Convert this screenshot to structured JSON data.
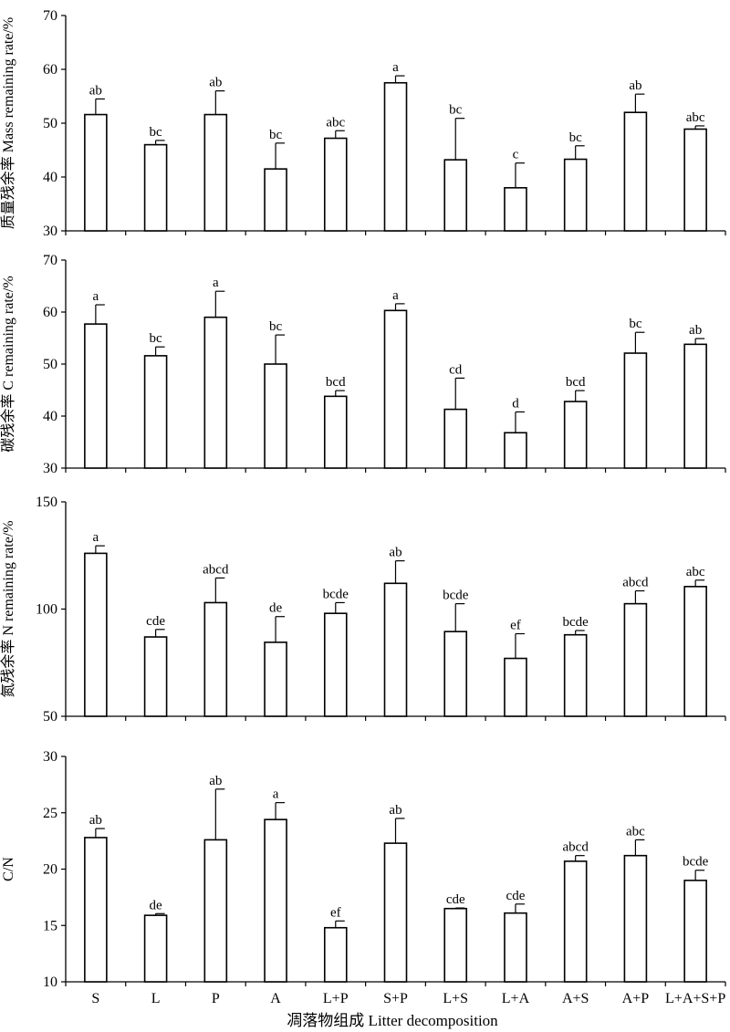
{
  "categories": [
    "S",
    "L",
    "P",
    "A",
    "L+P",
    "S+P",
    "L+S",
    "L+A",
    "A+S",
    "A+P",
    "L+A+S+P"
  ],
  "xlabel": "凋落物组成 Litter decomposition",
  "chart_data": [
    {
      "type": "bar",
      "ylabel": "质量残余率 Mass remaining rate/%",
      "ylim": [
        30,
        70
      ],
      "yticks": [
        30,
        40,
        50,
        60,
        70
      ],
      "categories": [
        "S",
        "L",
        "P",
        "A",
        "L+P",
        "S+P",
        "L+S",
        "L+A",
        "A+S",
        "A+P",
        "L+A+S+P"
      ],
      "values": [
        51.6,
        46.0,
        51.6,
        41.5,
        47.2,
        57.5,
        43.2,
        38.0,
        43.3,
        52.0,
        48.9
      ],
      "errors": [
        2.9,
        0.8,
        4.4,
        4.8,
        1.4,
        1.3,
        7.7,
        4.6,
        2.5,
        3.4,
        0.6
      ],
      "sig": [
        "ab",
        "bc",
        "ab",
        "bc",
        "abc",
        "a",
        "bc",
        "c",
        "bc",
        "ab",
        "abc"
      ]
    },
    {
      "type": "bar",
      "ylabel": "碳残余率 C remaining rate/%",
      "ylim": [
        30,
        70
      ],
      "yticks": [
        30,
        40,
        50,
        60,
        70
      ],
      "categories": [
        "S",
        "L",
        "P",
        "A",
        "L+P",
        "S+P",
        "L+S",
        "L+A",
        "A+S",
        "A+P",
        "L+A+S+P"
      ],
      "values": [
        57.7,
        51.6,
        59.0,
        50.0,
        43.8,
        60.3,
        41.3,
        36.8,
        42.8,
        52.1,
        53.8
      ],
      "errors": [
        3.7,
        1.7,
        5.0,
        5.6,
        1.1,
        1.3,
        6.0,
        4.0,
        2.1,
        4.0,
        1.1
      ],
      "sig": [
        "a",
        "bc",
        "a",
        "bc",
        "bcd",
        "a",
        "cd",
        "d",
        "bcd",
        "bc",
        "ab"
      ]
    },
    {
      "type": "bar",
      "ylabel": "氮残余率 N remaining rate/%",
      "ylim": [
        50,
        150
      ],
      "yticks": [
        50,
        100,
        150
      ],
      "categories": [
        "S",
        "L",
        "P",
        "A",
        "L+P",
        "S+P",
        "L+S",
        "L+A",
        "A+S",
        "A+P",
        "L+A+S+P"
      ],
      "values": [
        126.0,
        87.0,
        103.0,
        84.5,
        98.0,
        112.0,
        89.5,
        77.0,
        88.0,
        102.5,
        110.5
      ],
      "errors": [
        3.5,
        3.5,
        11.5,
        12.0,
        5.0,
        10.5,
        13.0,
        11.5,
        2.0,
        6.0,
        3.0
      ],
      "sig": [
        "a",
        "cde",
        "abcd",
        "de",
        "bcde",
        "ab",
        "bcde",
        "ef",
        "bcde",
        "abcd",
        "abc"
      ]
    },
    {
      "type": "bar",
      "ylabel": "C/N",
      "ylim": [
        10,
        30
      ],
      "yticks": [
        10,
        15,
        20,
        25,
        30
      ],
      "categories": [
        "S",
        "L",
        "P",
        "A",
        "L+P",
        "S+P",
        "L+S",
        "L+A",
        "A+S",
        "A+P",
        "L+A+S+P"
      ],
      "values": [
        22.8,
        15.9,
        22.6,
        24.4,
        14.8,
        22.3,
        16.5,
        16.1,
        20.7,
        21.2,
        19.0
      ],
      "errors": [
        0.8,
        0.15,
        4.5,
        1.5,
        0.6,
        2.2,
        0.05,
        0.8,
        0.5,
        1.4,
        0.9
      ],
      "sig": [
        "ab",
        "de",
        "ab",
        "a",
        "ef",
        "ab",
        "cde",
        "cde",
        "abcd",
        "abc",
        "bcde"
      ]
    }
  ]
}
